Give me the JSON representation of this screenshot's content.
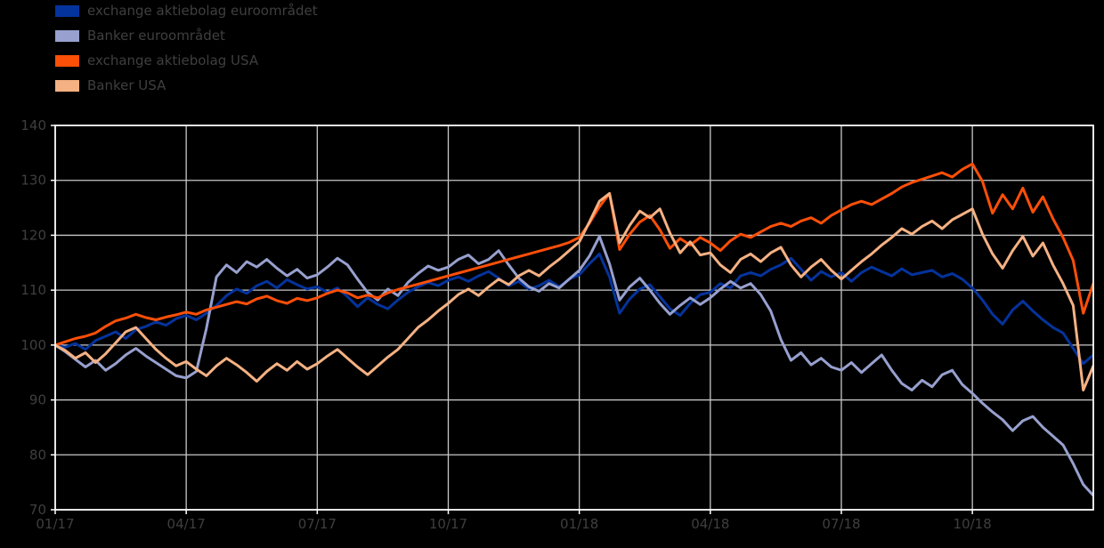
{
  "figure": {
    "background_color": "#000000",
    "plot_background_color": "#000000",
    "grid_color": "#c8c8c8",
    "spine_color": "#ffffff",
    "text_color": "#3f3f3f"
  },
  "legend": {
    "items": [
      {
        "label": "exchange aktiebolag euroområdet",
        "color": "#04339c"
      },
      {
        "label": "Banker euroområdet",
        "color": "#97a0ce"
      },
      {
        "label": "exchange aktiebolag USA",
        "color": "#fc4f08"
      },
      {
        "label": "Banker USA",
        "color": "#f5b183"
      }
    ]
  },
  "chart_data": {
    "type": "line",
    "title": "",
    "xlabel": "",
    "ylabel": "",
    "x_description": "weekly observations, January 2017 through December 2018, index start = 100",
    "n_points": 104,
    "x_tick_weeks": [
      0,
      13,
      26,
      39,
      52,
      65,
      78,
      91
    ],
    "x_tick_labels": [
      "01/17",
      "04/17",
      "07/17",
      "10/17",
      "01/18",
      "04/18",
      "07/18",
      "10/18"
    ],
    "ylim": [
      70,
      140
    ],
    "y_ticks": [
      70,
      80,
      90,
      100,
      110,
      120,
      130,
      140
    ],
    "grid": true,
    "legend_position": "upper-left outside plot",
    "series": [
      {
        "name": "exchange aktiebolag euroområdet",
        "color": "#04339c",
        "linewidth": 3,
        "values": [
          100,
          99.6,
          100.3,
          99.2,
          100.8,
          101.6,
          102.4,
          101.2,
          102.8,
          103.4,
          104.2,
          103.6,
          104.8,
          105.4,
          104.6,
          105.8,
          107.2,
          109.0,
          110.2,
          109.4,
          110.8,
          111.6,
          110.4,
          111.9,
          111.0,
          110.2,
          110.6,
          109.6,
          110.4,
          108.8,
          107.0,
          108.6,
          107.4,
          106.6,
          108.2,
          109.6,
          110.6,
          111.4,
          110.8,
          111.8,
          112.4,
          111.6,
          112.6,
          113.4,
          112.2,
          110.8,
          111.6,
          110.2,
          110.8,
          111.8,
          110.6,
          112.0,
          112.8,
          114.8,
          116.6,
          112.4,
          105.8,
          108.4,
          110.2,
          111.0,
          108.8,
          106.6,
          105.4,
          107.6,
          109.2,
          109.6,
          111.2,
          110.4,
          112.6,
          113.2,
          112.6,
          113.8,
          114.6,
          115.8,
          113.8,
          111.8,
          113.4,
          112.4,
          113.2,
          111.6,
          113.2,
          114.2,
          113.4,
          112.6,
          113.9,
          112.8,
          113.2,
          113.6,
          112.4,
          113.0,
          112.0,
          110.4,
          108.2,
          105.6,
          103.8,
          106.4,
          108.0,
          106.2,
          104.6,
          103.2,
          102.2,
          99.4,
          96.6,
          98.2
        ]
      },
      {
        "name": "Banker euroområdet",
        "color": "#97a0ce",
        "linewidth": 3,
        "values": [
          100,
          98.8,
          97.4,
          96.0,
          97.2,
          95.4,
          96.6,
          98.2,
          99.4,
          98.0,
          96.8,
          95.6,
          94.4,
          94.0,
          95.2,
          103.0,
          112.4,
          114.6,
          113.2,
          115.2,
          114.2,
          115.6,
          114.0,
          112.6,
          113.8,
          112.2,
          112.8,
          114.2,
          115.8,
          114.6,
          112.0,
          109.6,
          108.2,
          110.2,
          109.0,
          111.4,
          113.0,
          114.4,
          113.6,
          114.2,
          115.6,
          116.4,
          114.8,
          115.6,
          117.2,
          114.6,
          112.2,
          110.6,
          109.8,
          111.2,
          110.4,
          112.0,
          113.6,
          116.2,
          119.8,
          114.8,
          108.2,
          110.6,
          112.2,
          110.0,
          107.6,
          105.6,
          107.2,
          108.6,
          107.4,
          108.6,
          110.2,
          111.6,
          110.4,
          111.2,
          109.2,
          106.2,
          101.0,
          97.2,
          98.6,
          96.4,
          97.6,
          96.0,
          95.4,
          96.8,
          95.0,
          96.6,
          98.2,
          95.4,
          93.0,
          91.8,
          93.6,
          92.4,
          94.6,
          95.4,
          92.8,
          91.2,
          89.4,
          87.8,
          86.4,
          84.4,
          86.2,
          87.0,
          85.0,
          83.4,
          81.8,
          78.4,
          74.6,
          72.6
        ]
      },
      {
        "name": "exchange aktiebolag USA",
        "color": "#fc4f08",
        "linewidth": 3,
        "values": [
          100,
          100.6,
          101.2,
          101.6,
          102.2,
          103.4,
          104.4,
          104.9,
          105.6,
          105.0,
          104.6,
          105.1,
          105.5,
          106.0,
          105.6,
          106.4,
          106.9,
          107.4,
          107.9,
          107.5,
          108.4,
          108.9,
          108.1,
          107.6,
          108.5,
          108.1,
          108.6,
          109.4,
          110.0,
          109.5,
          108.6,
          109.1,
          108.6,
          109.5,
          110.1,
          110.6,
          111.1,
          111.6,
          112.1,
          112.6,
          113.1,
          113.6,
          114.1,
          114.6,
          115.1,
          115.6,
          116.1,
          116.6,
          117.1,
          117.6,
          118.1,
          118.7,
          119.6,
          122.2,
          125.2,
          127.6,
          117.4,
          120.2,
          122.4,
          123.6,
          121.0,
          117.6,
          119.4,
          118.2,
          119.6,
          118.6,
          117.2,
          119.0,
          120.2,
          119.6,
          120.6,
          121.6,
          122.2,
          121.6,
          122.6,
          123.2,
          122.2,
          123.6,
          124.6,
          125.6,
          126.2,
          125.6,
          126.6,
          127.6,
          128.8,
          129.6,
          130.2,
          130.8,
          131.4,
          130.6,
          132.0,
          133.0,
          129.8,
          124.0,
          127.4,
          124.8,
          128.6,
          124.2,
          127.0,
          123.0,
          119.6,
          115.4,
          105.8,
          111.2
        ]
      },
      {
        "name": "Banker USA",
        "color": "#f5b183",
        "linewidth": 3,
        "values": [
          100,
          99.0,
          97.6,
          98.6,
          96.8,
          98.4,
          100.4,
          102.4,
          103.2,
          101.2,
          99.2,
          97.6,
          96.2,
          97.0,
          95.6,
          94.4,
          96.2,
          97.6,
          96.4,
          95.0,
          93.4,
          95.2,
          96.6,
          95.4,
          97.0,
          95.6,
          96.6,
          98.0,
          99.2,
          97.6,
          96.0,
          94.6,
          96.2,
          97.8,
          99.2,
          101.2,
          103.2,
          104.6,
          106.2,
          107.6,
          109.2,
          110.2,
          109.0,
          110.6,
          112.0,
          111.0,
          112.6,
          113.6,
          112.6,
          114.2,
          115.6,
          117.2,
          118.8,
          122.4,
          126.2,
          127.6,
          118.6,
          121.8,
          124.4,
          123.2,
          124.8,
          120.4,
          116.8,
          118.8,
          116.4,
          116.8,
          114.6,
          113.2,
          115.6,
          116.6,
          115.2,
          116.8,
          117.8,
          114.6,
          112.4,
          114.2,
          115.6,
          113.6,
          112.0,
          113.6,
          115.2,
          116.6,
          118.2,
          119.6,
          121.2,
          120.2,
          121.6,
          122.6,
          121.2,
          122.8,
          123.8,
          124.8,
          120.2,
          116.6,
          114.0,
          117.2,
          119.8,
          116.2,
          118.6,
          114.6,
          111.2,
          107.2,
          91.8,
          96.2
        ]
      }
    ]
  }
}
